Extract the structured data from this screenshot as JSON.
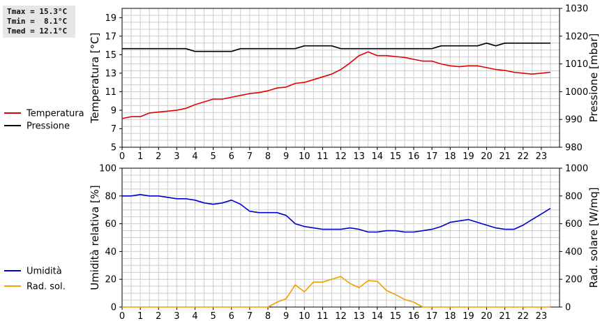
{
  "stats": {
    "tmax": "Tmax = 15.3°C",
    "tmin": "Tmin =  8.1°C",
    "tmed": "Tmed = 12.1°C"
  },
  "colors": {
    "temperature": "#e00000",
    "pressure": "#000000",
    "humidity": "#0000cc",
    "solar": "#f0a000",
    "grid": "#cccccc"
  },
  "chart_data": [
    {
      "type": "line",
      "x": [
        0,
        0.5,
        1,
        1.5,
        2,
        2.5,
        3,
        3.5,
        4,
        4.5,
        5,
        5.5,
        6,
        6.5,
        7,
        7.5,
        8,
        8.5,
        9,
        9.5,
        10,
        10.5,
        11,
        11.5,
        12,
        12.5,
        13,
        13.5,
        14,
        14.5,
        15,
        15.5,
        16,
        16.5,
        17,
        17.5,
        18,
        18.5,
        19,
        19.5,
        20,
        20.5,
        21,
        21.5,
        22,
        22.5,
        23,
        23.5
      ],
      "xlim": [
        0,
        24
      ],
      "xticks": [
        "0",
        "1",
        "2",
        "3",
        "4",
        "5",
        "6",
        "7",
        "8",
        "9",
        "10",
        "11",
        "12",
        "13",
        "14",
        "15",
        "16",
        "17",
        "18",
        "19",
        "20",
        "21",
        "22",
        "23"
      ],
      "ylabel": "Temperatura [°C]",
      "ylim": [
        5,
        20
      ],
      "yticks": [
        "5",
        "7",
        "9",
        "11",
        "13",
        "15",
        "17",
        "19"
      ],
      "y2label": "Pressione [mbar]",
      "y2lim": [
        980,
        1030
      ],
      "y2ticks": [
        "980",
        "990",
        "1000",
        "1010",
        "1020",
        "1030"
      ],
      "grid": true,
      "legend_position": "left",
      "series": [
        {
          "name": "Temperatura",
          "axis": "left",
          "values": [
            8.1,
            8.3,
            8.3,
            8.7,
            8.8,
            8.9,
            9.0,
            9.2,
            9.6,
            9.9,
            10.2,
            10.2,
            10.4,
            10.6,
            10.8,
            10.9,
            11.1,
            11.4,
            11.5,
            11.9,
            12.0,
            12.3,
            12.6,
            12.9,
            13.4,
            14.1,
            14.9,
            15.3,
            14.9,
            14.9,
            14.8,
            14.7,
            14.5,
            14.3,
            14.3,
            14.0,
            13.8,
            13.7,
            13.8,
            13.8,
            13.6,
            13.4,
            13.3,
            13.1,
            13.0,
            12.9,
            13.0,
            13.1
          ]
        },
        {
          "name": "Pressione",
          "axis": "right",
          "values": [
            1015.5,
            1015.5,
            1015.5,
            1015.5,
            1015.5,
            1015.5,
            1015.5,
            1015.5,
            1014.5,
            1014.5,
            1014.5,
            1014.5,
            1014.5,
            1015.5,
            1015.5,
            1015.5,
            1015.5,
            1015.5,
            1015.5,
            1015.5,
            1016.5,
            1016.5,
            1016.5,
            1016.5,
            1015.5,
            1015.5,
            1015.5,
            1015.5,
            1015.5,
            1015.5,
            1015.5,
            1015.5,
            1015.5,
            1015.5,
            1015.5,
            1016.5,
            1016.5,
            1016.5,
            1016.5,
            1016.5,
            1017.5,
            1016.5,
            1017.5,
            1017.5,
            1017.5,
            1017.5,
            1017.5,
            1017.5
          ]
        }
      ]
    },
    {
      "type": "line",
      "x": [
        0,
        0.5,
        1,
        1.5,
        2,
        2.5,
        3,
        3.5,
        4,
        4.5,
        5,
        5.5,
        6,
        6.5,
        7,
        7.5,
        8,
        8.5,
        9,
        9.5,
        10,
        10.5,
        11,
        11.5,
        12,
        12.5,
        13,
        13.5,
        14,
        14.5,
        15,
        15.5,
        16,
        16.5,
        17,
        17.5,
        18,
        18.5,
        19,
        19.5,
        20,
        20.5,
        21,
        21.5,
        22,
        22.5,
        23,
        23.5
      ],
      "xlim": [
        0,
        24
      ],
      "xticks": [
        "0",
        "1",
        "2",
        "3",
        "4",
        "5",
        "6",
        "7",
        "8",
        "9",
        "10",
        "11",
        "12",
        "13",
        "14",
        "15",
        "16",
        "17",
        "18",
        "19",
        "20",
        "21",
        "22",
        "23"
      ],
      "ylabel": "Umidità relativa [%]",
      "ylim": [
        0,
        100
      ],
      "yticks": [
        "0",
        "20",
        "40",
        "60",
        "80",
        "100"
      ],
      "y2label": "Rad. solare [W/mq]",
      "y2lim": [
        0,
        1000
      ],
      "y2ticks": [
        "0",
        "200",
        "400",
        "600",
        "800",
        "1000"
      ],
      "grid": true,
      "legend_position": "left",
      "series": [
        {
          "name": "Umidità",
          "axis": "left",
          "values": [
            80,
            80,
            81,
            80,
            80,
            79,
            78,
            78,
            77,
            75,
            74,
            75,
            77,
            74,
            69,
            68,
            68,
            68,
            66,
            60,
            58,
            57,
            56,
            56,
            56,
            57,
            56,
            54,
            54,
            55,
            55,
            54,
            54,
            55,
            56,
            58,
            61,
            62,
            63,
            61,
            59,
            57,
            56,
            56,
            59,
            63,
            67,
            71
          ]
        },
        {
          "name": "Rad. sol.",
          "axis": "right",
          "values": [
            0,
            0,
            0,
            0,
            0,
            0,
            0,
            0,
            0,
            0,
            0,
            0,
            0,
            0,
            0,
            0,
            0,
            35,
            60,
            160,
            110,
            180,
            180,
            200,
            220,
            170,
            140,
            190,
            185,
            120,
            90,
            55,
            35,
            0,
            0,
            0,
            0,
            0,
            0,
            0,
            0,
            0,
            0,
            0,
            0,
            0,
            0,
            0
          ]
        }
      ]
    }
  ]
}
